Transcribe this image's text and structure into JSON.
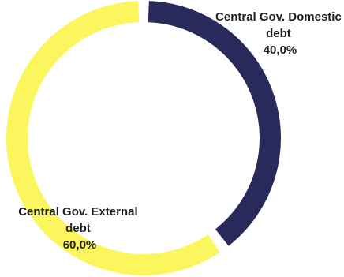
{
  "chart_data": {
    "type": "pie",
    "variant": "donut",
    "slices": [
      {
        "label_lines": [
          "Central Gov. Domestic",
          "debt"
        ],
        "value": 40.0,
        "value_label": "40,0%",
        "color": "#282a5c"
      },
      {
        "label_lines": [
          "Central Gov. External",
          "debt"
        ],
        "value": 60.0,
        "value_label": "60,0%",
        "color": "#fbf55e"
      }
    ],
    "legend": "none",
    "grid": false
  }
}
